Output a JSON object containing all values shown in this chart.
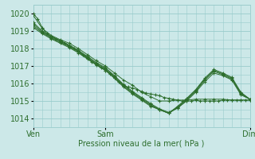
{
  "title": "Pression niveau de la mer( hPa )",
  "bg_color": "#cce8e8",
  "grid_color": "#99cccc",
  "line_color": "#2d6e2d",
  "ylim": [
    1013.5,
    1020.5
  ],
  "yticks": [
    1014,
    1015,
    1016,
    1017,
    1018,
    1019,
    1020
  ],
  "xlim": [
    0,
    48
  ],
  "xtick_positions": [
    0,
    16,
    48
  ],
  "xtick_labels": [
    "Ven",
    "Sam",
    "Dim"
  ],
  "series": [
    [
      0,
      1020.0,
      1,
      1019.7,
      2,
      1019.2,
      3,
      1018.85,
      4,
      1018.7,
      5,
      1018.55,
      6,
      1018.45,
      7,
      1018.3,
      8,
      1018.15,
      9,
      1018.0,
      10,
      1017.85,
      11,
      1017.65,
      12,
      1017.45,
      13,
      1017.25,
      14,
      1017.1,
      15,
      1016.9,
      16,
      1016.75,
      17,
      1016.55,
      18,
      1016.3,
      19,
      1016.1,
      20,
      1015.9,
      21,
      1015.8,
      22,
      1015.75,
      23,
      1015.65,
      24,
      1015.55,
      25,
      1015.45,
      26,
      1015.4,
      27,
      1015.35,
      28,
      1015.3,
      29,
      1015.2,
      30,
      1015.15,
      31,
      1015.1,
      32,
      1015.05,
      33,
      1015.0,
      34,
      1015.0,
      35,
      1015.0,
      36,
      1015.05,
      37,
      1015.0,
      38,
      1015.0,
      39,
      1015.0,
      40,
      1015.0,
      41,
      1015.0,
      42,
      1015.05,
      43,
      1015.05,
      44,
      1015.05,
      45,
      1015.05,
      46,
      1015.05,
      47,
      1015.05,
      48,
      1015.05
    ],
    [
      0,
      1019.9,
      2,
      1019.15,
      4,
      1018.75,
      6,
      1018.5,
      8,
      1018.3,
      10,
      1018.0,
      12,
      1017.65,
      14,
      1017.3,
      16,
      1017.0,
      18,
      1016.6,
      20,
      1016.2,
      22,
      1015.9,
      24,
      1015.5,
      26,
      1015.25,
      28,
      1015.0,
      30,
      1015.0,
      32,
      1015.05,
      34,
      1015.05,
      36,
      1015.1,
      38,
      1015.1,
      40,
      1015.1,
      42,
      1015.1,
      44,
      1015.05,
      46,
      1015.05,
      48,
      1015.05
    ],
    [
      0,
      1019.5,
      2,
      1019.0,
      4,
      1018.7,
      6,
      1018.45,
      8,
      1018.2,
      10,
      1017.9,
      12,
      1017.55,
      14,
      1017.2,
      16,
      1016.9,
      18,
      1016.45,
      20,
      1015.95,
      22,
      1015.55,
      24,
      1015.2,
      26,
      1014.85,
      28,
      1014.55,
      30,
      1014.35,
      32,
      1014.6,
      34,
      1015.0,
      36,
      1015.5,
      38,
      1016.1,
      40,
      1016.6,
      42,
      1016.45,
      44,
      1016.2,
      46,
      1015.35,
      48,
      1015.1
    ],
    [
      0,
      1019.4,
      2,
      1018.95,
      4,
      1018.65,
      6,
      1018.4,
      8,
      1018.15,
      10,
      1017.85,
      12,
      1017.5,
      14,
      1017.15,
      16,
      1016.85,
      18,
      1016.4,
      20,
      1015.9,
      22,
      1015.5,
      24,
      1015.15,
      26,
      1014.8,
      28,
      1014.5,
      30,
      1014.3,
      32,
      1014.6,
      34,
      1015.05,
      36,
      1015.55,
      38,
      1016.2,
      40,
      1016.7,
      42,
      1016.5,
      44,
      1016.25,
      46,
      1015.4,
      48,
      1015.1
    ],
    [
      0,
      1019.3,
      2,
      1018.9,
      4,
      1018.6,
      6,
      1018.35,
      8,
      1018.1,
      10,
      1017.8,
      12,
      1017.45,
      14,
      1017.1,
      16,
      1016.8,
      18,
      1016.35,
      20,
      1015.85,
      22,
      1015.45,
      24,
      1015.1,
      26,
      1014.75,
      28,
      1014.5,
      30,
      1014.3,
      32,
      1014.65,
      34,
      1015.1,
      36,
      1015.6,
      38,
      1016.25,
      40,
      1016.75,
      42,
      1016.55,
      44,
      1016.3,
      46,
      1015.45,
      48,
      1015.1
    ],
    [
      0,
      1019.2,
      2,
      1018.85,
      4,
      1018.55,
      6,
      1018.3,
      8,
      1018.05,
      10,
      1017.75,
      12,
      1017.4,
      14,
      1017.05,
      16,
      1016.75,
      18,
      1016.3,
      20,
      1015.8,
      22,
      1015.4,
      24,
      1015.05,
      26,
      1014.7,
      28,
      1014.5,
      30,
      1014.3,
      32,
      1014.7,
      34,
      1015.15,
      36,
      1015.65,
      38,
      1016.3,
      40,
      1016.8,
      42,
      1016.6,
      44,
      1016.35,
      46,
      1015.5,
      48,
      1015.1
    ]
  ]
}
